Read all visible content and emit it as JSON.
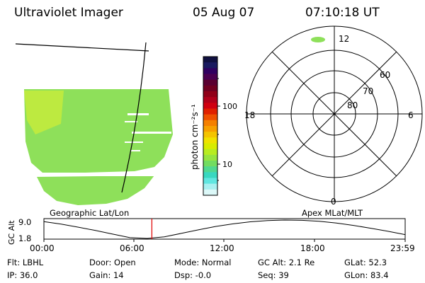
{
  "header": {
    "title": "Ultraviolet Imager",
    "date": "05 Aug 07",
    "time": "07:10:18 UT"
  },
  "colorbar": {
    "unit_label": "photon cm⁻²s⁻¹",
    "ticks": [
      "100",
      "10"
    ],
    "colors": [
      "#101040",
      "#1a1a60",
      "#300060",
      "#4a0050",
      "#5a0030",
      "#700020",
      "#900018",
      "#b0001a",
      "#d00010",
      "#e02000",
      "#ee5000",
      "#f58000",
      "#f7a000",
      "#f4c400",
      "#f0e200",
      "#d8ec00",
      "#b8ec20",
      "#96e440",
      "#72dc60",
      "#50d890",
      "#38d8c0",
      "#60e6e0",
      "#a8f0f0",
      "#dcf8f8"
    ]
  },
  "polar": {
    "top_label": "12",
    "left_label": "18",
    "right_label": "6",
    "bottom_label": "0",
    "lat_labels": [
      "60",
      "70",
      "80"
    ]
  },
  "map": {
    "fill_color": "#8ee05a",
    "stripe_color": "#ffffff"
  },
  "timeline": {
    "left_label": "Geographic Lat/Lon",
    "right_label": "Apex MLat/MLT",
    "y_axis_label": "GC Alt",
    "y_ticks": [
      "9.0",
      "1.8"
    ],
    "x_ticks": [
      "00:00",
      "06:00",
      "12:00",
      "18:00",
      "23:59"
    ],
    "marker_color": "#e00000",
    "marker_time": "07:10",
    "orbit_altitude_re": [
      8.4,
      7.4,
      6.2,
      4.9,
      3.5,
      2.1,
      1.8,
      2.4,
      3.8,
      5.2,
      6.5,
      7.5,
      8.3,
      8.8,
      9.0,
      8.9,
      8.5,
      7.8,
      6.9,
      5.8,
      4.6,
      3.3
    ],
    "marker_fraction": 0.2988
  },
  "info": {
    "row1": [
      "Flt: LBHL",
      "Door: Open",
      "Mode: Normal",
      "GC Alt: 2.1 Re",
      "GLat:  52.3"
    ],
    "row2": [
      "IP: 36.0",
      "Gain: 14",
      "Dsp:  -0.0",
      "Seq: 39",
      "GLon:  83.4"
    ]
  }
}
